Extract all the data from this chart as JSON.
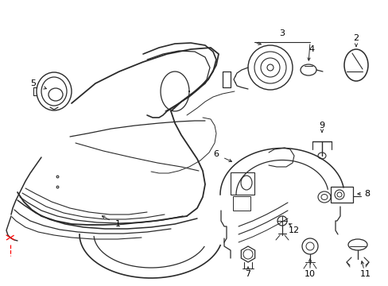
{
  "bg_color": "#ffffff",
  "line_color": "#2a2a2a",
  "red_color": "#ff0000",
  "figsize": [
    4.89,
    3.6
  ],
  "dpi": 100,
  "xlim": [
    0,
    489
  ],
  "ylim": [
    0,
    360
  ]
}
